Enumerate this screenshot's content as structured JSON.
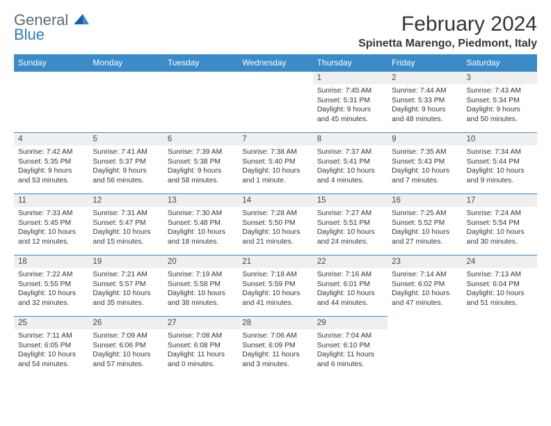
{
  "logo": {
    "part1": "General",
    "part2": "Blue"
  },
  "title": "February 2024",
  "location": "Spinetta Marengo, Piedmont, Italy",
  "columns": [
    "Sunday",
    "Monday",
    "Tuesday",
    "Wednesday",
    "Thursday",
    "Friday",
    "Saturday"
  ],
  "colors": {
    "header_bg": "#3b8bc9",
    "header_text": "#ffffff",
    "daynum_bg": "#efefef",
    "border": "#3b8bc9",
    "body_text": "#333333",
    "logo_gray": "#5a6a74",
    "logo_blue": "#2b7bbd"
  },
  "weeks": [
    [
      null,
      null,
      null,
      null,
      {
        "n": "1",
        "sunrise": "7:45 AM",
        "sunset": "5:31 PM",
        "daylight": "9 hours and 45 minutes."
      },
      {
        "n": "2",
        "sunrise": "7:44 AM",
        "sunset": "5:33 PM",
        "daylight": "9 hours and 48 minutes."
      },
      {
        "n": "3",
        "sunrise": "7:43 AM",
        "sunset": "5:34 PM",
        "daylight": "9 hours and 50 minutes."
      }
    ],
    [
      {
        "n": "4",
        "sunrise": "7:42 AM",
        "sunset": "5:35 PM",
        "daylight": "9 hours and 53 minutes."
      },
      {
        "n": "5",
        "sunrise": "7:41 AM",
        "sunset": "5:37 PM",
        "daylight": "9 hours and 56 minutes."
      },
      {
        "n": "6",
        "sunrise": "7:39 AM",
        "sunset": "5:38 PM",
        "daylight": "9 hours and 58 minutes."
      },
      {
        "n": "7",
        "sunrise": "7:38 AM",
        "sunset": "5:40 PM",
        "daylight": "10 hours and 1 minute."
      },
      {
        "n": "8",
        "sunrise": "7:37 AM",
        "sunset": "5:41 PM",
        "daylight": "10 hours and 4 minutes."
      },
      {
        "n": "9",
        "sunrise": "7:35 AM",
        "sunset": "5:43 PM",
        "daylight": "10 hours and 7 minutes."
      },
      {
        "n": "10",
        "sunrise": "7:34 AM",
        "sunset": "5:44 PM",
        "daylight": "10 hours and 9 minutes."
      }
    ],
    [
      {
        "n": "11",
        "sunrise": "7:33 AM",
        "sunset": "5:45 PM",
        "daylight": "10 hours and 12 minutes."
      },
      {
        "n": "12",
        "sunrise": "7:31 AM",
        "sunset": "5:47 PM",
        "daylight": "10 hours and 15 minutes."
      },
      {
        "n": "13",
        "sunrise": "7:30 AM",
        "sunset": "5:48 PM",
        "daylight": "10 hours and 18 minutes."
      },
      {
        "n": "14",
        "sunrise": "7:28 AM",
        "sunset": "5:50 PM",
        "daylight": "10 hours and 21 minutes."
      },
      {
        "n": "15",
        "sunrise": "7:27 AM",
        "sunset": "5:51 PM",
        "daylight": "10 hours and 24 minutes."
      },
      {
        "n": "16",
        "sunrise": "7:25 AM",
        "sunset": "5:52 PM",
        "daylight": "10 hours and 27 minutes."
      },
      {
        "n": "17",
        "sunrise": "7:24 AM",
        "sunset": "5:54 PM",
        "daylight": "10 hours and 30 minutes."
      }
    ],
    [
      {
        "n": "18",
        "sunrise": "7:22 AM",
        "sunset": "5:55 PM",
        "daylight": "10 hours and 32 minutes."
      },
      {
        "n": "19",
        "sunrise": "7:21 AM",
        "sunset": "5:57 PM",
        "daylight": "10 hours and 35 minutes."
      },
      {
        "n": "20",
        "sunrise": "7:19 AM",
        "sunset": "5:58 PM",
        "daylight": "10 hours and 38 minutes."
      },
      {
        "n": "21",
        "sunrise": "7:18 AM",
        "sunset": "5:59 PM",
        "daylight": "10 hours and 41 minutes."
      },
      {
        "n": "22",
        "sunrise": "7:16 AM",
        "sunset": "6:01 PM",
        "daylight": "10 hours and 44 minutes."
      },
      {
        "n": "23",
        "sunrise": "7:14 AM",
        "sunset": "6:02 PM",
        "daylight": "10 hours and 47 minutes."
      },
      {
        "n": "24",
        "sunrise": "7:13 AM",
        "sunset": "6:04 PM",
        "daylight": "10 hours and 51 minutes."
      }
    ],
    [
      {
        "n": "25",
        "sunrise": "7:11 AM",
        "sunset": "6:05 PM",
        "daylight": "10 hours and 54 minutes."
      },
      {
        "n": "26",
        "sunrise": "7:09 AM",
        "sunset": "6:06 PM",
        "daylight": "10 hours and 57 minutes."
      },
      {
        "n": "27",
        "sunrise": "7:08 AM",
        "sunset": "6:08 PM",
        "daylight": "11 hours and 0 minutes."
      },
      {
        "n": "28",
        "sunrise": "7:06 AM",
        "sunset": "6:09 PM",
        "daylight": "11 hours and 3 minutes."
      },
      {
        "n": "29",
        "sunrise": "7:04 AM",
        "sunset": "6:10 PM",
        "daylight": "11 hours and 6 minutes."
      },
      null,
      null
    ]
  ]
}
